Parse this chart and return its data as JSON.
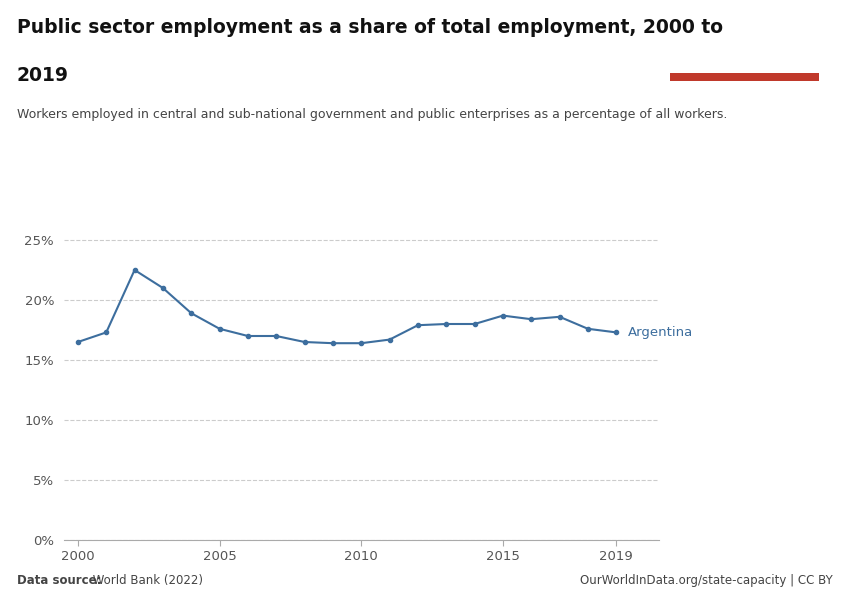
{
  "title_line1": "Public sector employment as a share of total employment, 2000 to",
  "title_line2": "2019",
  "subtitle": "Workers employed in central and sub-national government and public enterprises as a percentage of all workers.",
  "source_left_bold": "Data source:",
  "source_left_rest": " World Bank (2022)",
  "source_right": "OurWorldInData.org/state-capacity | CC BY",
  "line_label": "Argentina",
  "line_color": "#3d6e9e",
  "years": [
    2000,
    2001,
    2002,
    2003,
    2004,
    2005,
    2006,
    2007,
    2008,
    2009,
    2010,
    2011,
    2012,
    2013,
    2014,
    2015,
    2016,
    2017,
    2018,
    2019
  ],
  "values": [
    16.5,
    17.3,
    22.5,
    21.0,
    18.9,
    17.6,
    17.0,
    17.0,
    16.5,
    16.4,
    16.4,
    16.7,
    17.9,
    18.0,
    18.0,
    18.7,
    18.4,
    18.6,
    17.6,
    17.3
  ],
  "ylim": [
    0,
    0.26
  ],
  "yticks": [
    0,
    0.05,
    0.1,
    0.15,
    0.2,
    0.25
  ],
  "ytick_labels": [
    "0%",
    "5%",
    "10%",
    "15%",
    "20%",
    "25%"
  ],
  "xlim": [
    1999.5,
    2020.5
  ],
  "bg_color": "#ffffff",
  "grid_color": "#cccccc",
  "tick_color": "#555555",
  "logo_bg": "#1a3560",
  "logo_red": "#c0392b",
  "title_color": "#111111",
  "subtitle_color": "#444444",
  "source_color": "#444444"
}
